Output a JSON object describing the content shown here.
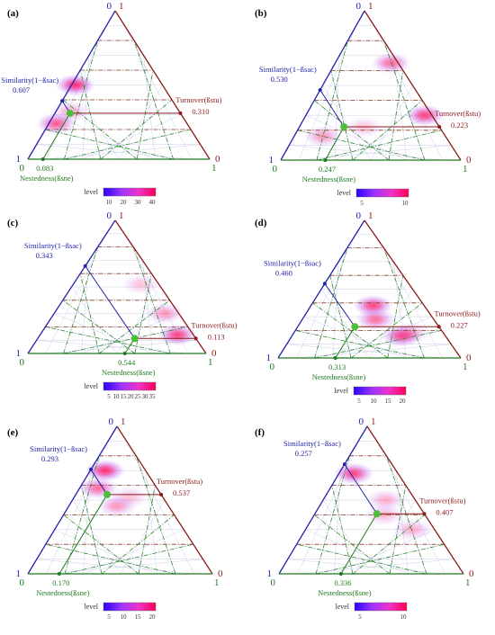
{
  "figure": {
    "colors": {
      "similarity": "#2222aa",
      "turnover": "#8b1a1a",
      "nestedness": "#1e7a1e",
      "point": "#4bbf3a",
      "grid_red": "#8b3a1a",
      "grid_green": "#2e8b2e",
      "grid_blue": "#9a9ad8"
    },
    "legend_gradient": [
      "#2b00ff",
      "#9a33ff",
      "#ee33cc",
      "#ff0055"
    ]
  },
  "chart_data": [
    {
      "type": "ternary-density",
      "panel_label": "(a)",
      "axes": {
        "similarity": {
          "label": "Similarity(1−ßsac)",
          "value": "0.607",
          "min_label": "0",
          "max_label": "1"
        },
        "turnover": {
          "label": "Turnover(ßstu)",
          "value": "0.310",
          "min_label": "0",
          "max_label": "1"
        },
        "nestedness": {
          "label": "Nestedness(ßsne)",
          "value": "0.083",
          "min_label": "0",
          "max_label": "1"
        }
      },
      "mean_point": {
        "similarity": 0.607,
        "turnover": 0.31,
        "nestedness": 0.083
      },
      "density_blobs": [
        {
          "similarity": 0.72,
          "turnover": 0.24,
          "nestedness": 0.04,
          "intensity": 0.8
        },
        {
          "similarity": 0.48,
          "turnover": 0.5,
          "nestedness": 0.02,
          "intensity": 1.0
        },
        {
          "similarity": 0.6,
          "turnover": 0.32,
          "nestedness": 0.08,
          "intensity": 0.4
        }
      ],
      "legend": {
        "title": "level",
        "ticks": [
          "10",
          "20",
          "30",
          "40"
        ]
      }
    },
    {
      "type": "ternary-density",
      "panel_label": "(b)",
      "axes": {
        "similarity": {
          "label": "Similarity(1−ßsac)",
          "value": "0.530",
          "min_label": "0",
          "max_label": "1"
        },
        "turnover": {
          "label": "Turnover(ßstu)",
          "value": "0.223",
          "min_label": "0",
          "max_label": "1"
        },
        "nestedness": {
          "label": "Nestedness(ßsne)",
          "value": "0.247",
          "min_label": "0",
          "max_label": "1"
        }
      },
      "mean_point": {
        "similarity": 0.53,
        "turnover": 0.223,
        "nestedness": 0.247
      },
      "density_blobs": [
        {
          "similarity": 0.68,
          "turnover": 0.16,
          "nestedness": 0.16,
          "intensity": 0.5
        },
        {
          "similarity": 0.42,
          "turnover": 0.22,
          "nestedness": 0.36,
          "intensity": 0.3
        },
        {
          "similarity": 0.04,
          "turnover": 0.3,
          "nestedness": 0.66,
          "intensity": 0.9
        },
        {
          "similarity": 0.04,
          "turnover": 0.65,
          "nestedness": 0.31,
          "intensity": 0.7
        }
      ],
      "legend": {
        "title": "level",
        "ticks": [
          "5",
          "10"
        ]
      }
    },
    {
      "type": "ternary-density",
      "panel_label": "(c)",
      "axes": {
        "similarity": {
          "label": "Similarity(1−ßsac)",
          "value": "0.343",
          "min_label": "0",
          "max_label": "1"
        },
        "turnover": {
          "label": "Turnover(ßstu)",
          "value": "0.113",
          "min_label": "0",
          "max_label": "1"
        },
        "nestedness": {
          "label": "Nestedness(ßsne)",
          "value": "0.544",
          "min_label": "0",
          "max_label": "1"
        }
      },
      "mean_point": {
        "similarity": 0.343,
        "turnover": 0.113,
        "nestedness": 0.544
      },
      "density_blobs": [
        {
          "similarity": 0.08,
          "turnover": 0.3,
          "nestedness": 0.62,
          "intensity": 0.5
        },
        {
          "similarity": 0.09,
          "turnover": 0.14,
          "nestedness": 0.77,
          "intensity": 0.9
        },
        {
          "similarity": 0.1,
          "turnover": 0.52,
          "nestedness": 0.38,
          "intensity": 0.3
        }
      ],
      "legend": {
        "title": "level",
        "ticks": [
          "5",
          "10",
          "15",
          "20",
          "25",
          "30",
          "35"
        ]
      }
    },
    {
      "type": "ternary-density",
      "panel_label": "(d)",
      "axes": {
        "similarity": {
          "label": "Similarity(1−ßsac)",
          "value": "0.460",
          "min_label": "0",
          "max_label": "1"
        },
        "turnover": {
          "label": "Turnover(ßstu)",
          "value": "0.227",
          "min_label": "0",
          "max_label": "1"
        },
        "nestedness": {
          "label": "Nestedness(ßsne)",
          "value": "0.313",
          "min_label": "0",
          "max_label": "1"
        }
      },
      "mean_point": {
        "similarity": 0.46,
        "turnover": 0.227,
        "nestedness": 0.313
      },
      "density_blobs": [
        {
          "similarity": 0.24,
          "turnover": 0.16,
          "nestedness": 0.6,
          "intensity": 0.9
        },
        {
          "similarity": 0.28,
          "turnover": 0.38,
          "nestedness": 0.34,
          "intensity": 0.9
        },
        {
          "similarity": 0.32,
          "turnover": 0.28,
          "nestedness": 0.4,
          "intensity": 0.7
        },
        {
          "similarity": 0.18,
          "turnover": 0.18,
          "nestedness": 0.64,
          "intensity": 0.4
        }
      ],
      "legend": {
        "title": "level",
        "ticks": [
          "5",
          "10",
          "15",
          "20"
        ]
      }
    },
    {
      "type": "ternary-density",
      "panel_label": "(e)",
      "axes": {
        "similarity": {
          "label": "Similarity(1−ßsac)",
          "value": "0.293",
          "min_label": "0",
          "max_label": "1"
        },
        "turnover": {
          "label": "Turnover(ßstu)",
          "value": "0.537",
          "min_label": "0",
          "max_label": "1"
        },
        "nestedness": {
          "label": "Nestedness(ßsne)",
          "value": "0.170",
          "min_label": "0",
          "max_label": "1"
        }
      },
      "mean_point": {
        "similarity": 0.293,
        "turnover": 0.537,
        "nestedness": 0.17
      },
      "density_blobs": [
        {
          "similarity": 0.22,
          "turnover": 0.7,
          "nestedness": 0.08,
          "intensity": 1.0
        },
        {
          "similarity": 0.32,
          "turnover": 0.58,
          "nestedness": 0.1,
          "intensity": 0.7
        },
        {
          "similarity": 0.28,
          "turnover": 0.46,
          "nestedness": 0.26,
          "intensity": 0.5
        },
        {
          "similarity": 0.18,
          "turnover": 0.52,
          "nestedness": 0.3,
          "intensity": 0.3
        }
      ],
      "legend": {
        "title": "level",
        "ticks": [
          "5",
          "10",
          "15",
          "20"
        ]
      }
    },
    {
      "type": "ternary-density",
      "panel_label": "(f)",
      "axes": {
        "similarity": {
          "label": "Similarity(1−ßsac)",
          "value": "0.257",
          "min_label": "0",
          "max_label": "1"
        },
        "turnover": {
          "label": "Turnover(ßstu)",
          "value": "0.407",
          "min_label": "0",
          "max_label": "1"
        },
        "nestedness": {
          "label": "Nestedness(ßsne)",
          "value": "0.336",
          "min_label": "0",
          "max_label": "1"
        }
      },
      "mean_point": {
        "similarity": 0.257,
        "turnover": 0.407,
        "nestedness": 0.336
      },
      "density_blobs": [
        {
          "similarity": 0.24,
          "turnover": 0.68,
          "nestedness": 0.08,
          "intensity": 0.9
        },
        {
          "similarity": 0.16,
          "turnover": 0.5,
          "nestedness": 0.34,
          "intensity": 0.4
        },
        {
          "similarity": 0.12,
          "turnover": 0.3,
          "nestedness": 0.58,
          "intensity": 0.4
        },
        {
          "similarity": 0.22,
          "turnover": 0.4,
          "nestedness": 0.38,
          "intensity": 0.35
        }
      ],
      "legend": {
        "title": "level",
        "ticks": [
          "5",
          "10"
        ]
      }
    }
  ]
}
